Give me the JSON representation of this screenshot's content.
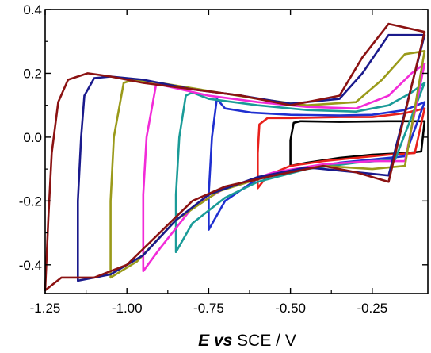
{
  "chart_data": {
    "type": "line",
    "title": "",
    "xlabel_italic": "E vs",
    "xlabel_rest": " SCE / V",
    "ylabel": "",
    "xlim": [
      -1.25,
      -0.08
    ],
    "ylim": [
      -0.49,
      0.4
    ],
    "x_ticks": [
      -1.25,
      -1.0,
      -0.75,
      -0.5,
      -0.25
    ],
    "x_tick_labels": [
      "-1.25",
      "-1.00",
      "-0.75",
      "-0.50",
      "-0.25"
    ],
    "y_ticks": [
      0.4,
      0.2,
      0.0,
      -0.2,
      -0.4
    ],
    "y_tick_labels": [
      "0.4",
      "0.2",
      "0.0",
      "-0.2",
      "-0.4"
    ],
    "grid": false,
    "legend": "none",
    "series": [
      {
        "color": "#000000",
        "points": [
          [
            -0.09,
            0.05
          ],
          [
            -0.2,
            0.05
          ],
          [
            -0.35,
            0.048
          ],
          [
            -0.47,
            0.05
          ],
          [
            -0.49,
            0.045
          ],
          [
            -0.5,
            -0.01
          ],
          [
            -0.5,
            -0.09
          ],
          [
            -0.45,
            -0.08
          ],
          [
            -0.35,
            -0.065
          ],
          [
            -0.25,
            -0.055
          ],
          [
            -0.15,
            -0.05
          ],
          [
            -0.1,
            -0.045
          ],
          [
            -0.09,
            0.05
          ]
        ]
      },
      {
        "color": "#e8211c",
        "points": [
          [
            -0.09,
            0.09
          ],
          [
            -0.15,
            0.075
          ],
          [
            -0.25,
            0.063
          ],
          [
            -0.35,
            0.063
          ],
          [
            -0.5,
            0.06
          ],
          [
            -0.57,
            0.06
          ],
          [
            -0.595,
            0.04
          ],
          [
            -0.6,
            -0.05
          ],
          [
            -0.6,
            -0.16
          ],
          [
            -0.57,
            -0.12
          ],
          [
            -0.5,
            -0.09
          ],
          [
            -0.4,
            -0.075
          ],
          [
            -0.3,
            -0.065
          ],
          [
            -0.2,
            -0.055
          ],
          [
            -0.12,
            -0.05
          ],
          [
            -0.09,
            0.09
          ]
        ]
      },
      {
        "color": "#1f2fd0",
        "points": [
          [
            -0.09,
            0.11
          ],
          [
            -0.15,
            0.085
          ],
          [
            -0.25,
            0.07
          ],
          [
            -0.35,
            0.068
          ],
          [
            -0.5,
            0.07
          ],
          [
            -0.62,
            0.077
          ],
          [
            -0.7,
            0.09
          ],
          [
            -0.725,
            0.12
          ],
          [
            -0.74,
            0.0
          ],
          [
            -0.75,
            -0.18
          ],
          [
            -0.75,
            -0.29
          ],
          [
            -0.7,
            -0.2
          ],
          [
            -0.6,
            -0.13
          ],
          [
            -0.45,
            -0.095
          ],
          [
            -0.35,
            -0.08
          ],
          [
            -0.25,
            -0.07
          ],
          [
            -0.15,
            -0.06
          ],
          [
            -0.09,
            0.11
          ]
        ]
      },
      {
        "color": "#1a9b98",
        "points": [
          [
            -0.09,
            0.17
          ],
          [
            -0.13,
            0.14
          ],
          [
            -0.2,
            0.1
          ],
          [
            -0.3,
            0.08
          ],
          [
            -0.45,
            0.085
          ],
          [
            -0.6,
            0.1
          ],
          [
            -0.75,
            0.12
          ],
          [
            -0.8,
            0.14
          ],
          [
            -0.82,
            0.13
          ],
          [
            -0.84,
            0.0
          ],
          [
            -0.85,
            -0.18
          ],
          [
            -0.85,
            -0.36
          ],
          [
            -0.8,
            -0.27
          ],
          [
            -0.7,
            -0.19
          ],
          [
            -0.6,
            -0.14
          ],
          [
            -0.45,
            -0.1
          ],
          [
            -0.3,
            -0.08
          ],
          [
            -0.18,
            -0.07
          ],
          [
            -0.09,
            0.17
          ]
        ]
      },
      {
        "color": "#f22bd8",
        "points": [
          [
            -0.09,
            0.23
          ],
          [
            -0.13,
            0.2
          ],
          [
            -0.2,
            0.13
          ],
          [
            -0.3,
            0.09
          ],
          [
            -0.45,
            0.095
          ],
          [
            -0.6,
            0.11
          ],
          [
            -0.75,
            0.13
          ],
          [
            -0.88,
            0.16
          ],
          [
            -0.91,
            0.17
          ],
          [
            -0.94,
            0.0
          ],
          [
            -0.95,
            -0.18
          ],
          [
            -0.95,
            -0.42
          ],
          [
            -0.9,
            -0.35
          ],
          [
            -0.8,
            -0.22
          ],
          [
            -0.7,
            -0.16
          ],
          [
            -0.55,
            -0.11
          ],
          [
            -0.4,
            -0.085
          ],
          [
            -0.25,
            -0.075
          ],
          [
            -0.15,
            -0.075
          ],
          [
            -0.09,
            0.23
          ]
        ]
      },
      {
        "color": "#9a9a1a",
        "points": [
          [
            -0.09,
            0.27
          ],
          [
            -0.15,
            0.26
          ],
          [
            -0.22,
            0.18
          ],
          [
            -0.3,
            0.11
          ],
          [
            -0.45,
            0.1
          ],
          [
            -0.6,
            0.12
          ],
          [
            -0.75,
            0.145
          ],
          [
            -0.9,
            0.17
          ],
          [
            -0.98,
            0.18
          ],
          [
            -1.01,
            0.17
          ],
          [
            -1.04,
            0.0
          ],
          [
            -1.05,
            -0.2
          ],
          [
            -1.05,
            -0.44
          ],
          [
            -0.97,
            -0.39
          ],
          [
            -0.85,
            -0.26
          ],
          [
            -0.72,
            -0.17
          ],
          [
            -0.55,
            -0.115
          ],
          [
            -0.4,
            -0.09
          ],
          [
            -0.25,
            -0.1
          ],
          [
            -0.15,
            -0.09
          ],
          [
            -0.09,
            0.27
          ]
        ]
      },
      {
        "color": "#1a1a8c",
        "points": [
          [
            -0.09,
            0.32
          ],
          [
            -0.2,
            0.32
          ],
          [
            -0.28,
            0.2
          ],
          [
            -0.35,
            0.12
          ],
          [
            -0.5,
            0.105
          ],
          [
            -0.65,
            0.13
          ],
          [
            -0.8,
            0.15
          ],
          [
            -0.95,
            0.18
          ],
          [
            -1.05,
            0.19
          ],
          [
            -1.1,
            0.185
          ],
          [
            -1.13,
            0.13
          ],
          [
            -1.14,
            0.0
          ],
          [
            -1.15,
            -0.2
          ],
          [
            -1.15,
            -0.45
          ],
          [
            -1.05,
            -0.43
          ],
          [
            -0.95,
            -0.37
          ],
          [
            -0.85,
            -0.26
          ],
          [
            -0.75,
            -0.18
          ],
          [
            -0.6,
            -0.125
          ],
          [
            -0.45,
            -0.095
          ],
          [
            -0.3,
            -0.11
          ],
          [
            -0.2,
            -0.12
          ],
          [
            -0.09,
            0.32
          ]
        ]
      },
      {
        "color": "#8b1212",
        "points": [
          [
            -0.09,
            0.33
          ],
          [
            -0.2,
            0.355
          ],
          [
            -0.28,
            0.25
          ],
          [
            -0.35,
            0.13
          ],
          [
            -0.5,
            0.1
          ],
          [
            -0.65,
            0.13
          ],
          [
            -0.8,
            0.15
          ],
          [
            -0.95,
            0.17
          ],
          [
            -1.05,
            0.19
          ],
          [
            -1.12,
            0.2
          ],
          [
            -1.18,
            0.18
          ],
          [
            -1.21,
            0.11
          ],
          [
            -1.23,
            -0.05
          ],
          [
            -1.24,
            -0.25
          ],
          [
            -1.25,
            -0.48
          ],
          [
            -1.2,
            -0.44
          ],
          [
            -1.1,
            -0.44
          ],
          [
            -1.0,
            -0.4
          ],
          [
            -0.9,
            -0.3
          ],
          [
            -0.8,
            -0.2
          ],
          [
            -0.7,
            -0.155
          ],
          [
            -0.55,
            -0.12
          ],
          [
            -0.4,
            -0.09
          ],
          [
            -0.3,
            -0.11
          ],
          [
            -0.2,
            -0.14
          ],
          [
            -0.09,
            0.33
          ]
        ]
      }
    ]
  }
}
